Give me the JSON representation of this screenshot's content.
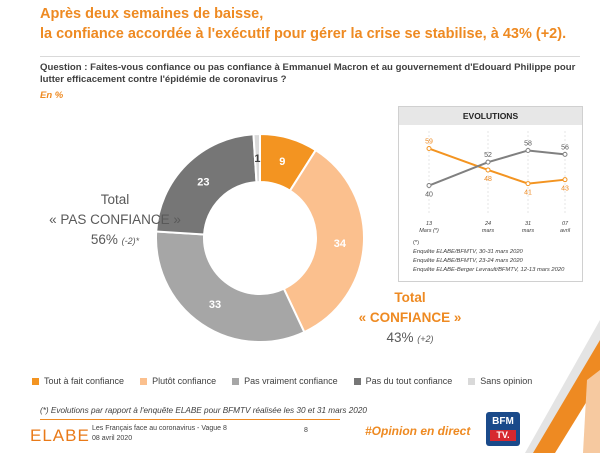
{
  "header": {
    "title_line1": "Après deux semaines de baisse,",
    "title_line2": "la confiance accordée à l'exécutif pour gérer la crise se stabilise, à 43% (+2).",
    "question": "Question : Faites-vous confiance ou pas confiance à Emmanuel Macron et au gouvernement d'Edouard Philippe pour lutter efficacement contre l'épidémie de coronavirus ?",
    "unit": "En %"
  },
  "totals": {
    "pas_confiance_label1": "Total",
    "pas_confiance_label2": "« PAS CONFIANCE »",
    "pas_confiance_value": "56%",
    "pas_confiance_change": "(-2)*",
    "confiance_label1": "Total",
    "confiance_label2": "« CONFIANCE »",
    "confiance_value": "43%",
    "confiance_change": "(+2)"
  },
  "chart_data": [
    {
      "type": "pie",
      "subtype": "donut",
      "categories": [
        "Tout à fait confiance",
        "Plutôt confiance",
        "Pas vraiment confiance",
        "Pas du tout confiance",
        "Sans opinion"
      ],
      "values": [
        9,
        34,
        33,
        23,
        1
      ],
      "labels": [
        "9",
        "34",
        "33",
        "23",
        "1"
      ],
      "colors": [
        "#f39421",
        "#fbc08e",
        "#a6a6a6",
        "#767676",
        "#d9d9d9"
      ]
    },
    {
      "type": "line",
      "title": "EVOLUTIONS",
      "categories": [
        "13\nMars (*)",
        "24\nmars",
        "31\nmars",
        "07\navril"
      ],
      "category_lines": [
        [
          "13",
          "Mars (*)"
        ],
        [
          "24",
          "mars"
        ],
        [
          "31",
          "mars"
        ],
        [
          "07",
          "avril"
        ]
      ],
      "series": [
        {
          "name": "Confiance",
          "values": [
            59,
            48,
            41,
            43
          ],
          "color": "#f39421"
        },
        {
          "name": "Pas confiance",
          "values": [
            40,
            52,
            58,
            56
          ],
          "color": "#808080"
        }
      ],
      "ylim": [
        30,
        68
      ]
    }
  ],
  "evolutions": {
    "title": "EVOLUTIONS",
    "sources_star": "(*)",
    "source1": "Enquête ELABE/BFMTV, 30-31 mars 2020",
    "source2": "Enquête ELABE/BFMTV, 23-24 mars 2020",
    "source3": "Enquête ELABE-Berger Levrault/BFMTV, 12-13 mars 2020"
  },
  "footer": {
    "footnote": "(*) Evolutions par rapport à l'enquête ELABE pour BFMTV réalisée les 30 et 31 mars 2020",
    "logo": "ELABE",
    "study": "Les Français face au coronavirus - Vague 8",
    "date": "08 avril 2020",
    "page": "8",
    "hashtag": "#Opinion en direct",
    "bfm_line1": "BFM",
    "bfm_line2": "TV."
  },
  "decor": {
    "corner_colors": [
      "#ee8a22",
      "#f6c9a0",
      "#e4e4e4"
    ]
  }
}
